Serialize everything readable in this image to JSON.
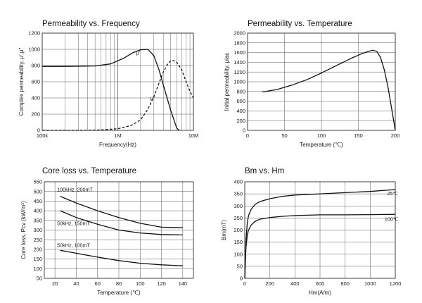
{
  "chart_data": [
    {
      "type": "line",
      "title": "Permeability vs. Frequency",
      "xlabel": "Frequency(Hz)",
      "ylabel": "Complex permeability, μ′,μ″",
      "xscale": "log",
      "xlim": [
        100000,
        10000000
      ],
      "ylim": [
        0,
        1200
      ],
      "x_ticks": [
        100000,
        1000000,
        10000000
      ],
      "x_tick_labels": [
        "100k",
        "1M",
        "10M"
      ],
      "y_ticks": [
        0,
        200,
        400,
        600,
        800,
        1000,
        1200
      ],
      "grid": "log-minor",
      "series": [
        {
          "name": "μ′",
          "style": "solid",
          "x": [
            100000,
            200000,
            500000,
            800000,
            1200000,
            1600000,
            2000000,
            2500000,
            3000000,
            3500000,
            4000000,
            5000000,
            6000000,
            6500000
          ],
          "y": [
            790,
            790,
            795,
            820,
            890,
            960,
            995,
            1000,
            920,
            750,
            560,
            250,
            30,
            0
          ]
        },
        {
          "name": "μ″",
          "style": "dashed",
          "x": [
            100000,
            300000,
            600000,
            1000000,
            1500000,
            2000000,
            2500000,
            3000000,
            3500000,
            4000000,
            4500000,
            5000000,
            5500000,
            6000000,
            7000000,
            8000000,
            9000000,
            10000000
          ],
          "y": [
            0,
            0,
            5,
            20,
            60,
            130,
            260,
            420,
            580,
            720,
            810,
            860,
            860,
            840,
            750,
            600,
            480,
            400
          ]
        }
      ],
      "annotations": [
        "μ′",
        "μ″"
      ]
    },
    {
      "type": "line",
      "title": "Permeability vs. Temperature",
      "xlabel": "Temperature (℃)",
      "ylabel": "Initial permeability, μiac",
      "xlim": [
        0,
        200
      ],
      "ylim": [
        0,
        2000
      ],
      "x_ticks": [
        0,
        50,
        100,
        150,
        200
      ],
      "y_ticks": [
        0,
        200,
        400,
        600,
        800,
        1000,
        1200,
        1400,
        1600,
        1800,
        2000
      ],
      "grid": true,
      "series": [
        {
          "name": "",
          "x": [
            20,
            40,
            60,
            80,
            100,
            120,
            140,
            155,
            165,
            170,
            175,
            180,
            185,
            190,
            195,
            200
          ],
          "y": [
            790,
            840,
            930,
            1040,
            1180,
            1330,
            1480,
            1580,
            1630,
            1650,
            1620,
            1500,
            1250,
            900,
            450,
            0
          ]
        }
      ]
    },
    {
      "type": "line",
      "title": "Core loss vs. Temperature",
      "xlabel": "Temperature (℃)",
      "ylabel": "Core loss, Pcv (kW/m³)",
      "xlim": [
        10,
        150
      ],
      "ylim": [
        50,
        550
      ],
      "x_ticks": [
        20,
        40,
        60,
        80,
        100,
        120,
        140
      ],
      "y_ticks": [
        50,
        100,
        150,
        200,
        250,
        300,
        350,
        400,
        450,
        500,
        550
      ],
      "grid": true,
      "series": [
        {
          "name": "100kHz, 200mT",
          "x": [
            25,
            40,
            60,
            80,
            100,
            120,
            140
          ],
          "y": [
            475,
            440,
            400,
            365,
            335,
            315,
            312
          ]
        },
        {
          "name": "50kHz, 150mT",
          "x": [
            25,
            40,
            60,
            80,
            100,
            120,
            140
          ],
          "y": [
            400,
            365,
            330,
            300,
            285,
            277,
            275
          ]
        },
        {
          "name": "50kHz, 100mT",
          "x": [
            25,
            40,
            60,
            80,
            100,
            120,
            140
          ],
          "y": [
            195,
            180,
            160,
            142,
            128,
            120,
            115
          ]
        }
      ]
    },
    {
      "type": "line",
      "title": "Bm vs. Hm",
      "xlabel": "Hm(A/m)",
      "ylabel": "Bm(mT)",
      "xlim": [
        0,
        1200
      ],
      "ylim": [
        0,
        400
      ],
      "x_ticks": [
        0,
        200,
        400,
        600,
        800,
        1000,
        1200
      ],
      "y_ticks": [
        0,
        50,
        100,
        150,
        200,
        250,
        300,
        350,
        400
      ],
      "grid": true,
      "series": [
        {
          "name": "25℃",
          "x": [
            0,
            5,
            10,
            20,
            30,
            50,
            80,
            120,
            200,
            300,
            400,
            600,
            800,
            1000,
            1200
          ],
          "y": [
            0,
            80,
            160,
            230,
            260,
            285,
            305,
            318,
            330,
            340,
            345,
            350,
            355,
            360,
            368
          ]
        },
        {
          "name": "100℃",
          "x": [
            0,
            5,
            10,
            20,
            30,
            50,
            80,
            120,
            200,
            300,
            400,
            600,
            800,
            1000,
            1200
          ],
          "y": [
            0,
            70,
            130,
            180,
            200,
            220,
            235,
            245,
            252,
            257,
            260,
            263,
            263,
            264,
            265
          ]
        }
      ]
    }
  ]
}
